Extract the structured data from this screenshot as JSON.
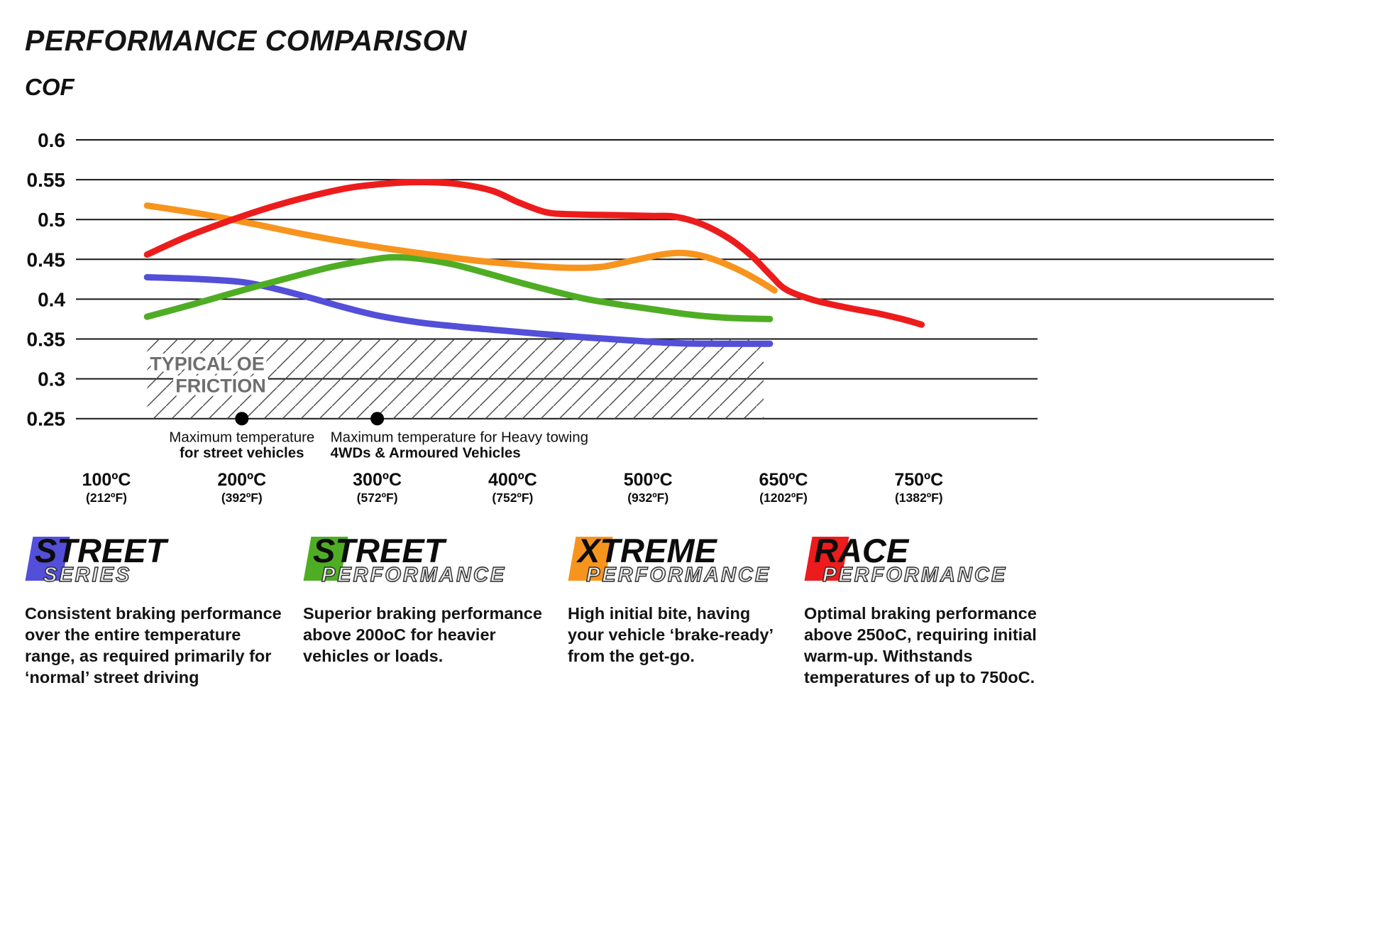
{
  "chart_data": {
    "type": "line",
    "title": "PERFORMANCE COMPARISON",
    "ylabel": "COF",
    "grid": true,
    "ylim": [
      0.25,
      0.6
    ],
    "y_ticks": [
      {
        "v": 0.6,
        "label": "0.6"
      },
      {
        "v": 0.55,
        "label": "0.55"
      },
      {
        "v": 0.5,
        "label": "0.5"
      },
      {
        "v": 0.45,
        "label": "0.45"
      },
      {
        "v": 0.4,
        "label": "0.4"
      },
      {
        "v": 0.35,
        "label": "0.35"
      },
      {
        "v": 0.3,
        "label": "0.3"
      },
      {
        "v": 0.25,
        "label": "0.25"
      }
    ],
    "x_ticks": [
      {
        "t": 100,
        "label_c": "100ºC",
        "label_f": "(212ºF)"
      },
      {
        "t": 200,
        "label_c": "200ºC",
        "label_f": "(392ºF)"
      },
      {
        "t": 300,
        "label_c": "300ºC",
        "label_f": "(572ºF)"
      },
      {
        "t": 400,
        "label_c": "400ºC",
        "label_f": "(752ºF)"
      },
      {
        "t": 500,
        "label_c": "500ºC",
        "label_f": "(932ºF)"
      },
      {
        "t": 650,
        "label_c": "650ºC",
        "label_f": "(1202ºF)"
      },
      {
        "t": 750,
        "label_c": "750ºC",
        "label_f": "(1382ºF)"
      }
    ],
    "series": [
      {
        "name": "Street Series",
        "color": "#534fd9",
        "points": [
          [
            130,
            0.4275
          ],
          [
            165,
            0.4255
          ],
          [
            200,
            0.4215
          ],
          [
            225,
            0.413
          ],
          [
            250,
            0.402
          ],
          [
            275,
            0.39
          ],
          [
            300,
            0.3795
          ],
          [
            330,
            0.371
          ],
          [
            360,
            0.3655
          ],
          [
            390,
            0.361
          ],
          [
            420,
            0.3565
          ],
          [
            450,
            0.3525
          ],
          [
            480,
            0.349
          ],
          [
            510,
            0.346
          ],
          [
            540,
            0.3445
          ],
          [
            575,
            0.344
          ],
          [
            605,
            0.344
          ],
          [
            635,
            0.344
          ]
        ]
      },
      {
        "name": "Street Performance",
        "color": "#4fad24",
        "points": [
          [
            130,
            0.378
          ],
          [
            165,
            0.394
          ],
          [
            200,
            0.411
          ],
          [
            235,
            0.427
          ],
          [
            265,
            0.44
          ],
          [
            290,
            0.448
          ],
          [
            310,
            0.4525
          ],
          [
            330,
            0.451
          ],
          [
            355,
            0.444
          ],
          [
            380,
            0.433
          ],
          [
            405,
            0.421
          ],
          [
            430,
            0.41
          ],
          [
            455,
            0.4
          ],
          [
            480,
            0.393
          ],
          [
            510,
            0.3865
          ],
          [
            540,
            0.3815
          ],
          [
            570,
            0.378
          ],
          [
            600,
            0.376
          ],
          [
            635,
            0.375
          ]
        ]
      },
      {
        "name": "Xtreme Performance",
        "color": "#f7941e",
        "points": [
          [
            130,
            0.5175
          ],
          [
            170,
            0.507
          ],
          [
            210,
            0.494
          ],
          [
            250,
            0.48
          ],
          [
            290,
            0.468
          ],
          [
            330,
            0.458
          ],
          [
            370,
            0.449
          ],
          [
            410,
            0.4425
          ],
          [
            440,
            0.4395
          ],
          [
            465,
            0.4405
          ],
          [
            490,
            0.449
          ],
          [
            515,
            0.456
          ],
          [
            535,
            0.458
          ],
          [
            555,
            0.4555
          ],
          [
            575,
            0.449
          ],
          [
            600,
            0.437
          ],
          [
            620,
            0.425
          ],
          [
            640,
            0.411
          ]
        ]
      },
      {
        "name": "Race Performance",
        "color": "#ed1c1c",
        "points": [
          [
            130,
            0.456
          ],
          [
            160,
            0.479
          ],
          [
            190,
            0.498
          ],
          [
            220,
            0.515
          ],
          [
            250,
            0.529
          ],
          [
            280,
            0.54
          ],
          [
            310,
            0.5455
          ],
          [
            335,
            0.547
          ],
          [
            360,
            0.5445
          ],
          [
            385,
            0.536
          ],
          [
            405,
            0.521
          ],
          [
            425,
            0.509
          ],
          [
            445,
            0.5065
          ],
          [
            475,
            0.5055
          ],
          [
            505,
            0.5045
          ],
          [
            530,
            0.5035
          ],
          [
            560,
            0.494
          ],
          [
            590,
            0.476
          ],
          [
            615,
            0.454
          ],
          [
            635,
            0.431
          ],
          [
            652,
            0.412
          ],
          [
            672,
            0.399
          ],
          [
            695,
            0.39
          ],
          [
            720,
            0.382
          ],
          [
            740,
            0.374
          ],
          [
            752,
            0.368
          ]
        ]
      }
    ],
    "oe_band": {
      "label": [
        "TYPICAL OE",
        "FRICTION"
      ],
      "v_top": 0.35,
      "v_bottom": 0.25,
      "t_start": 130,
      "t_end": 628
    },
    "annotations": [
      {
        "t": 200,
        "v": 0.25,
        "align": "center",
        "bold_line": 1,
        "lines": [
          "Maximum temperature",
          "for street vehicles"
        ]
      },
      {
        "t": 300,
        "v": 0.25,
        "align": "left",
        "bold_line": 1,
        "lines": [
          "Maximum temperature for Heavy towing",
          "4WDs & Armoured Vehicles"
        ]
      }
    ]
  },
  "legend": {
    "items": [
      {
        "word_top": "STREET",
        "word_bottom": "SERIES",
        "color": "#534fd9",
        "description": "Consistent braking performance over the entire temperature range, as required primarily for ‘normal’ street driving"
      },
      {
        "word_top": "STREET",
        "word_bottom": "PERFORMANCE",
        "color": "#4fad24",
        "description": "Superior braking performance above 200oC for heavier vehicles or loads."
      },
      {
        "word_top": "XTREME",
        "word_bottom": "PERFORMANCE",
        "color": "#f7941e",
        "description": "High initial bite, having your vehicle ‘brake-ready’ from the get-go."
      },
      {
        "word_top": "RACE",
        "word_bottom": "PERFORMANCE",
        "color": "#ed1c1c",
        "description": "Optimal braking performance above 250oC, requiring initial warm-up. Withstands temperatures of up to 750oC."
      }
    ]
  }
}
